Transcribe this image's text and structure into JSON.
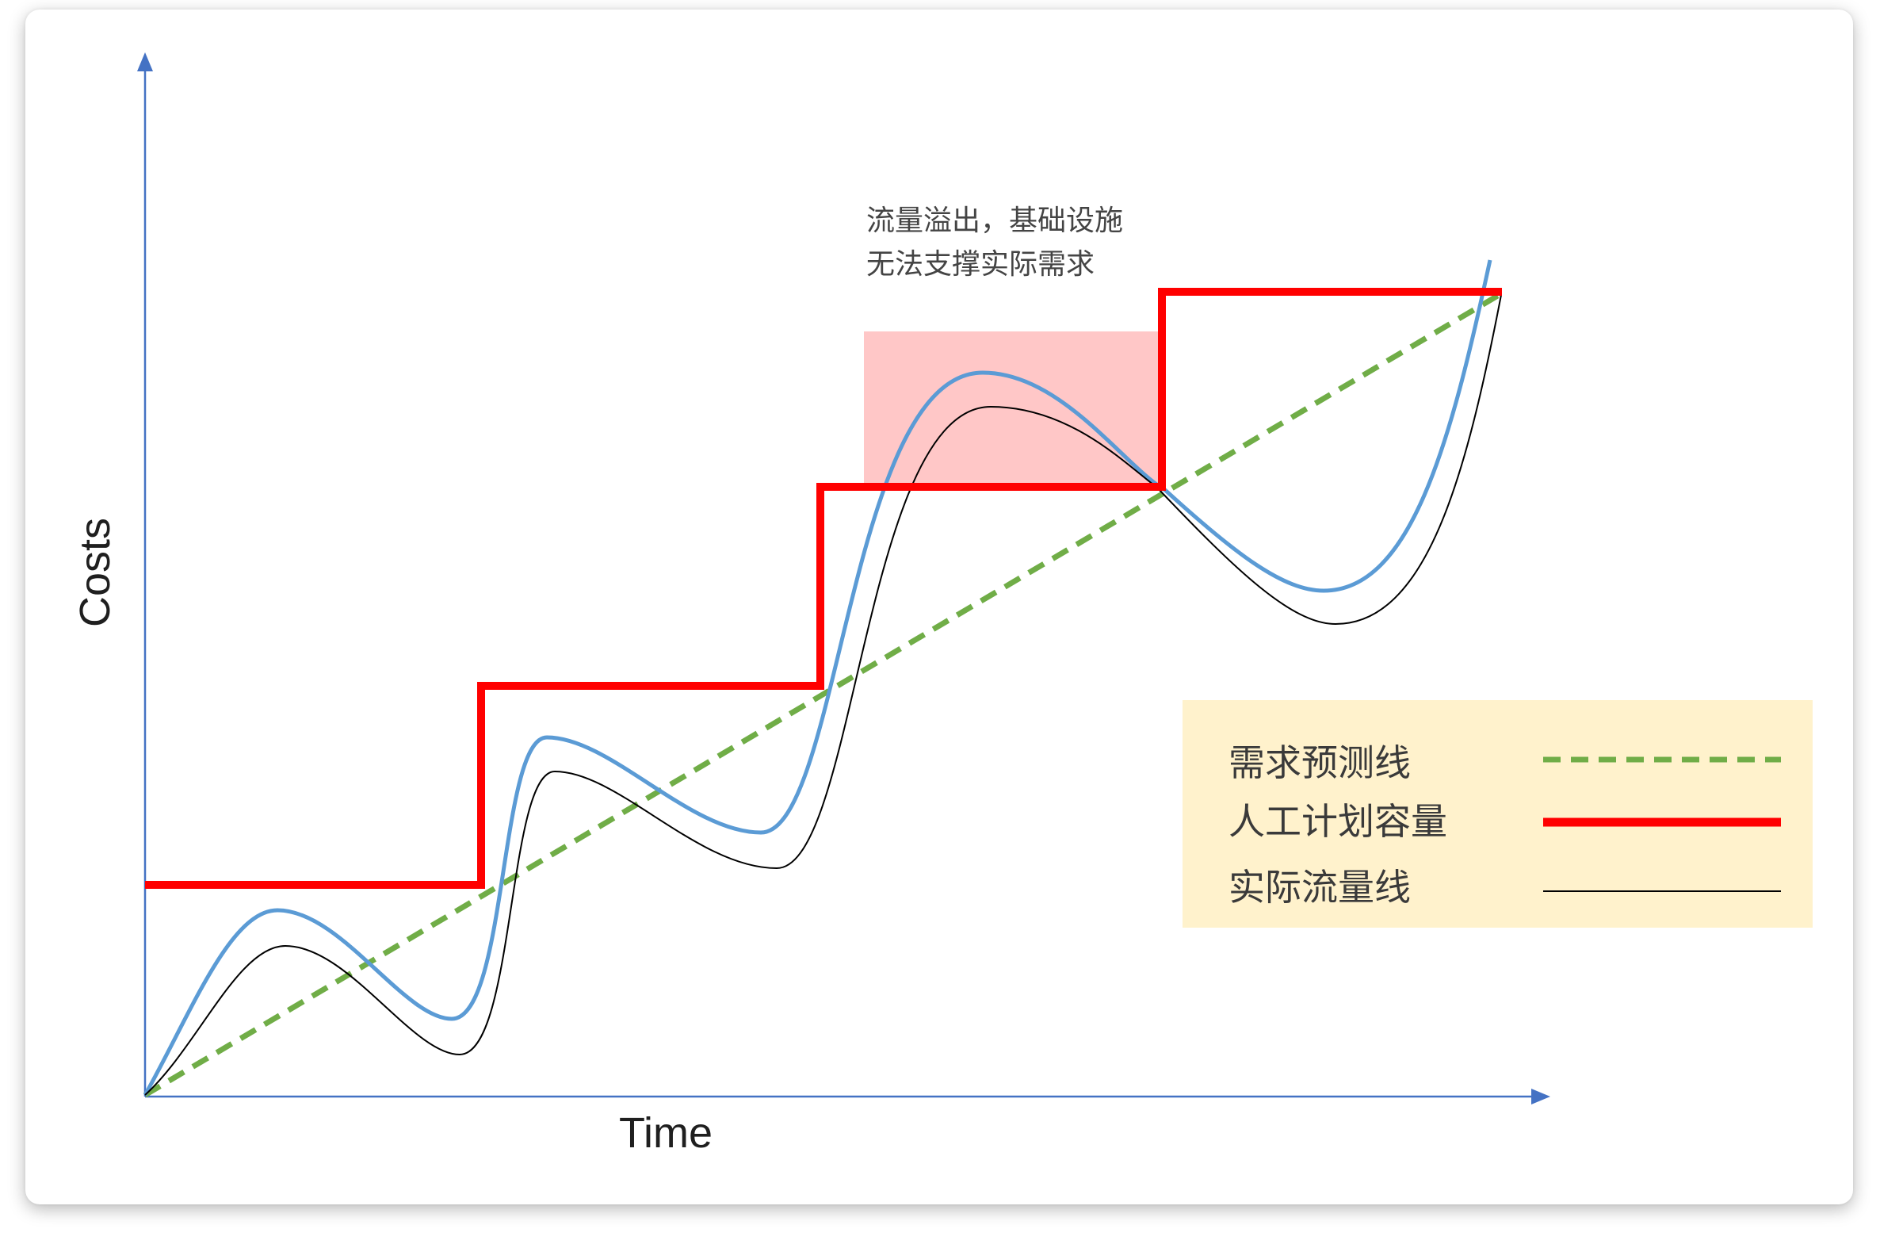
{
  "axes": {
    "x_label": "Time",
    "y_label": "Costs"
  },
  "annotation": {
    "line1": "流量溢出，基础设施",
    "line2": "无法支撑实际需求"
  },
  "legend": {
    "items": [
      {
        "label": "需求预测线",
        "style": "dashed",
        "color": "#70ad47"
      },
      {
        "label": "人工计划容量",
        "style": "thick-solid",
        "color": "#ff0000"
      },
      {
        "label": "实际流量线",
        "style": "thin-solid",
        "color": "#000000"
      }
    ]
  },
  "colors": {
    "axis": "#4472c4",
    "forecast": "#70ad47",
    "capacity": "#ff0000",
    "actual": "#000000",
    "actual_halo": "#5b9bd5",
    "overflow_region": "#ffc7c7",
    "legend_bg": "#fff2cc"
  }
}
